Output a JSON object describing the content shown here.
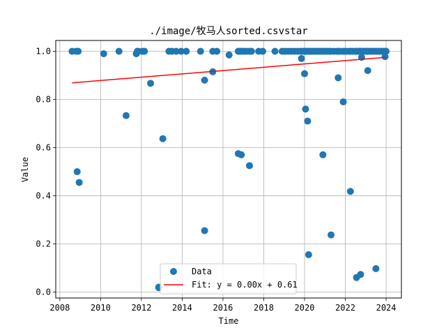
{
  "chart_data": {
    "type": "scatter",
    "title": "./image/牧马人sorted.csvstar",
    "xlabel": "Time",
    "ylabel": "Value",
    "xlim": [
      2007.8,
      2024.75
    ],
    "ylim": [
      -0.025,
      1.045
    ],
    "grid": true,
    "legend_position": "lower center",
    "x_ticks": [
      2008,
      2010,
      2012,
      2014,
      2016,
      2018,
      2020,
      2022,
      2024
    ],
    "y_ticks": [
      0.0,
      0.2,
      0.4,
      0.6,
      0.8,
      1.0
    ],
    "x_tick_labels": [
      "2008",
      "2010",
      "2012",
      "2014",
      "2016",
      "2018",
      "2020",
      "2022",
      "2024"
    ],
    "y_tick_labels": [
      "0.0",
      "0.2",
      "0.4",
      "0.6",
      "0.8",
      "1.0"
    ],
    "series": [
      {
        "name": "Data",
        "kind": "scatter",
        "color": "#1f77b4",
        "x": [
          2008.6,
          2008.8,
          2008.9,
          2008.85,
          2008.95,
          2010.15,
          2010.9,
          2011.25,
          2011.75,
          2011.8,
          2011.85,
          2012.05,
          2012.15,
          2012.45,
          2012.85,
          2013.05,
          2013.35,
          2013.5,
          2013.7,
          2013.95,
          2014.2,
          2014.9,
          2015.1,
          2015.5,
          2015.7,
          2016.3,
          2016.75,
          2016.8,
          2016.85,
          2016.95,
          2017.05,
          2017.15,
          2017.3,
          2017.4,
          2017.75,
          2017.95,
          2018.55,
          2018.9,
          2019.05,
          2019.2,
          2019.35,
          2019.5,
          2019.65,
          2019.8,
          2019.85,
          2019.95,
          2020.0,
          2020.05,
          2020.1,
          2020.2,
          2020.25,
          2020.35,
          2020.45,
          2020.55,
          2020.65,
          2020.75,
          2020.85,
          2020.95,
          2021.05,
          2021.15,
          2021.25,
          2021.3,
          2021.45,
          2021.6,
          2021.65,
          2021.75,
          2021.9,
          2021.95,
          2022.05,
          2022.2,
          2022.25,
          2022.35,
          2022.5,
          2022.55,
          2022.65,
          2022.7,
          2022.75,
          2022.8,
          2022.9,
          2023.0,
          2023.05,
          2023.1,
          2023.2,
          2023.3,
          2023.4,
          2023.5,
          2023.55,
          2023.65,
          2023.75,
          2023.85,
          2023.95,
          2024.0,
          2023.95,
          2023.1,
          2022.8,
          2022.55,
          2022.25,
          2021.9,
          2021.65,
          2021.3,
          2020.9,
          2020.2,
          2020.15,
          2020.05,
          2020.0,
          2019.85,
          2017.3,
          2016.9,
          2016.75,
          2015.5,
          2015.1,
          2012.85
        ],
        "y": [
          1.0,
          1.0,
          1.0,
          0.5,
          0.455,
          0.99,
          1.0,
          0.733,
          0.99,
          1.0,
          1.0,
          1.0,
          1.0,
          0.867,
          0.02,
          0.637,
          1.0,
          1.0,
          1.0,
          1.0,
          1.0,
          1.0,
          0.255,
          1.0,
          1.0,
          0.985,
          1.0,
          1.0,
          1.0,
          1.0,
          1.0,
          1.0,
          1.0,
          1.0,
          1.0,
          1.0,
          1.0,
          1.0,
          1.0,
          1.0,
          1.0,
          1.0,
          1.0,
          1.0,
          1.0,
          1.0,
          1.0,
          1.0,
          1.0,
          1.0,
          1.0,
          1.0,
          1.0,
          1.0,
          1.0,
          1.0,
          1.0,
          1.0,
          1.0,
          1.0,
          1.0,
          1.0,
          1.0,
          1.0,
          1.0,
          1.0,
          1.0,
          1.0,
          1.0,
          1.0,
          1.0,
          1.0,
          1.0,
          1.0,
          1.0,
          1.0,
          1.0,
          1.0,
          1.0,
          1.0,
          1.0,
          1.0,
          1.0,
          1.0,
          1.0,
          1.0,
          1.0,
          1.0,
          1.0,
          1.0,
          1.0,
          1.0,
          0.978,
          0.92,
          0.975,
          0.06,
          0.418,
          0.79,
          0.89,
          0.237,
          0.57,
          0.155,
          0.71,
          0.76,
          0.907,
          0.97,
          0.525,
          0.57,
          0.575,
          0.915,
          0.88,
          0.018
        ]
      },
      {
        "name": "Fit: y = 0.00x + 0.61",
        "kind": "line",
        "color": "#ff0000",
        "x": [
          2008.6,
          2024.0
        ],
        "y": [
          0.869,
          0.975
        ]
      }
    ],
    "extra_points": {
      "x": [
        2022.75,
        2023.5
      ],
      "y": [
        0.073,
        0.097
      ]
    }
  }
}
